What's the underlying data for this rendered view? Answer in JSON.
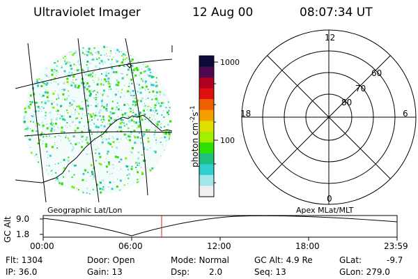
{
  "header": {
    "instrument": "Ultraviolet Imager",
    "date": "12 Aug 00",
    "time": "08:07:34 UT"
  },
  "image_panel": {
    "label": "Geographic Lat/Lon"
  },
  "colorbar": {
    "unit_main": "photon cm",
    "unit_sup1": "-2",
    "unit_mid": "s",
    "unit_sup2": "-1",
    "ticks": [
      "1000",
      "100"
    ],
    "colors": [
      "#0b0b3a",
      "#4b0a50",
      "#b00020",
      "#e01010",
      "#f06000",
      "#f5a000",
      "#e0e000",
      "#a0f000",
      "#30e000",
      "#20c080",
      "#30d0d0",
      "#a0e8e8",
      "#f0f0f0"
    ]
  },
  "polar_plot": {
    "label": "Apex MLat/MLT",
    "mlt_labels": {
      "top": "12",
      "left": "18",
      "right": "6",
      "bottom": "0"
    },
    "lat_labels": [
      "60",
      "70",
      "80"
    ]
  },
  "altitude_plot": {
    "ylabel": "GC Alt",
    "y_ticks": [
      "9.0",
      "1.8"
    ],
    "x_ticks": [
      "00:00",
      "06:00",
      "12:00",
      "18:00",
      "23:59"
    ],
    "marker_color": "#cc2020"
  },
  "info": {
    "flt": "Flt: 1304",
    "ip": "IP: 36.0",
    "door": "Door: Open",
    "gain": "Gain: 13",
    "mode": "Mode: Normal",
    "dsp_label": "Dsp:",
    "dsp_value": "2.0",
    "gc_alt": "GC Alt: 4.9 Re",
    "seq": "Seq: 13",
    "glat_label": "GLat:",
    "glat_value": "-9.7",
    "glon": "GLon: 279.0"
  }
}
